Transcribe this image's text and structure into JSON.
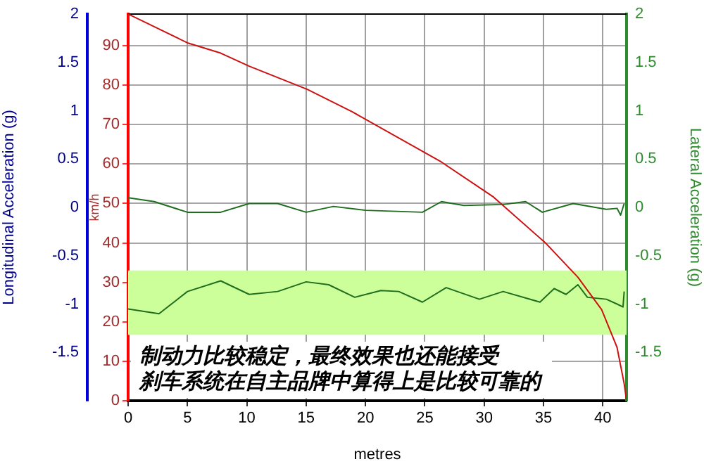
{
  "chart_data": {
    "type": "line",
    "xlabel": "metres",
    "ylabel": "km/h",
    "y2label": "Lateral Acceleration (g)",
    "y3label": "Longitudinal Acceleration (g)",
    "xlim": [
      0,
      42
    ],
    "xticks": [
      0,
      5,
      10,
      15,
      20,
      25,
      30,
      35,
      40
    ],
    "ylim": [
      0,
      98
    ],
    "yticks": [
      0,
      10,
      20,
      30,
      40,
      50,
      60,
      70,
      80,
      90
    ],
    "y2lim": [
      -2,
      2
    ],
    "y2ticks": [
      -1.5,
      -1,
      -0.5,
      0,
      0.5,
      1,
      1.5,
      2
    ],
    "y3lim": [
      -2,
      2
    ],
    "y3ticks": [
      -1.5,
      -1,
      -0.5,
      0,
      0.5,
      1,
      1.5,
      2
    ],
    "grid": true,
    "marker": "none",
    "line_style": "solid",
    "bands": [
      {
        "axis": "y",
        "from": 16.7,
        "to": 33,
        "color": "#ccff99"
      }
    ],
    "annotations": [
      "制动力比较稳定，最终效果也还能接受",
      "刹车系统在自主品牌中算得上是比较可靠的"
    ],
    "series": [
      {
        "type": "line",
        "axis": "y",
        "color": "#cc1111",
        "x": [
          0,
          5,
          7.8,
          10.2,
          15.1,
          18.9,
          26.4,
          30.8,
          35.2,
          37.9,
          39.9,
          41.2,
          41.8,
          42
        ],
        "values": [
          98,
          90.7,
          88.1,
          84.8,
          78.9,
          73.2,
          60.5,
          51.6,
          39.9,
          31.3,
          23.1,
          13.5,
          4.3,
          0
        ]
      },
      {
        "type": "line",
        "axis": "y2",
        "color": "#1f6e1f",
        "x": [
          0,
          2.2,
          5,
          7.8,
          10.2,
          12.6,
          15,
          17.3,
          20,
          24.8,
          26.4,
          28.3,
          31.6,
          33.5,
          34.9,
          37.5,
          40.3,
          41.2,
          41.5,
          41.8
        ],
        "values": [
          0.1,
          0.06,
          -0.05,
          -0.05,
          0.04,
          0.04,
          -0.05,
          0.01,
          -0.03,
          -0.05,
          0.06,
          0.02,
          0.03,
          0.06,
          -0.05,
          0.04,
          -0.02,
          -0.01,
          -0.08,
          0.04
        ]
      },
      {
        "type": "line",
        "axis": "y3",
        "color": "#1f6e1f",
        "x": [
          0,
          2.6,
          5,
          7.8,
          10.2,
          12.6,
          15,
          16.9,
          19.1,
          21.3,
          22.8,
          24.8,
          26.8,
          29.6,
          31.6,
          34.7,
          35.9,
          36.9,
          37.9,
          38.7,
          40.3,
          41.2,
          41.7,
          41.8
        ],
        "values": [
          -1.05,
          -1.1,
          -0.87,
          -0.76,
          -0.9,
          -0.87,
          -0.77,
          -0.8,
          -0.93,
          -0.86,
          -0.87,
          -0.98,
          -0.83,
          -0.95,
          -0.87,
          -0.98,
          -0.84,
          -0.9,
          -0.8,
          -0.93,
          -0.95,
          -1,
          -1.03,
          -0.87
        ]
      }
    ]
  }
}
